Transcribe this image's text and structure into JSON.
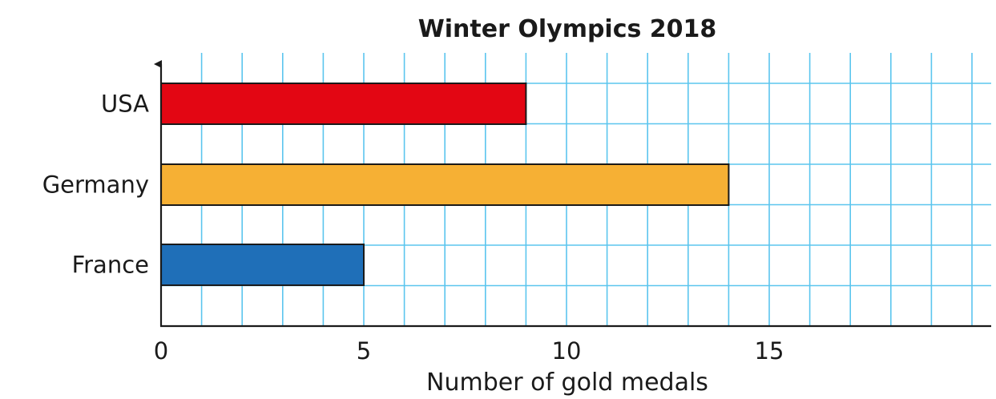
{
  "chart_data": {
    "type": "bar",
    "orientation": "horizontal",
    "title": "Winter Olympics 2018",
    "xlabel": "Number of gold medals",
    "ylabel": "",
    "categories": [
      "USA",
      "Germany",
      "France"
    ],
    "values": [
      9,
      14,
      5
    ],
    "colors": [
      "#e30613",
      "#f6b034",
      "#1f6fb8"
    ],
    "xlim": [
      0,
      20
    ],
    "xticks": [
      0,
      5,
      10,
      15
    ],
    "grid": true,
    "grid_color": "#5bc5ee",
    "legend": "none"
  }
}
